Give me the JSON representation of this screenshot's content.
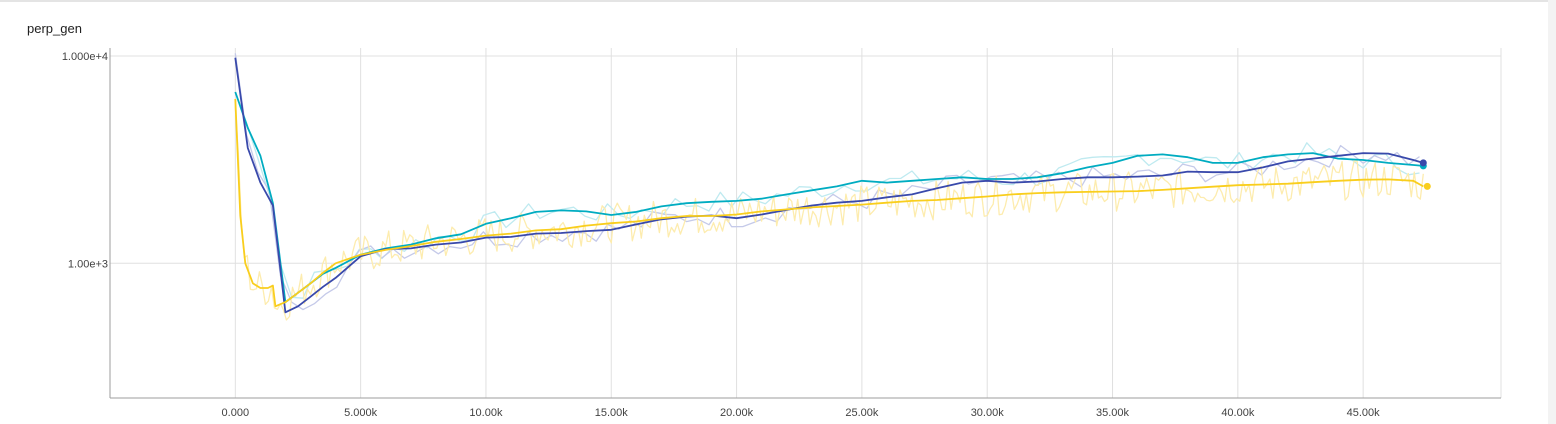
{
  "chart_data": {
    "type": "line",
    "title": "perp_gen",
    "xlabel": "",
    "ylabel": "",
    "y_scale": "log",
    "xlim": [
      -5000,
      50500
    ],
    "ylim_log10": [
      2.35,
      4.0
    ],
    "grid": true,
    "legend": "none",
    "x_ticks": [
      0,
      5000,
      10000,
      15000,
      20000,
      25000,
      30000,
      35000,
      40000,
      45000
    ],
    "x_tick_labels": [
      "0.000",
      "5.000k",
      "10.00k",
      "15.00k",
      "20.00k",
      "25.00k",
      "30.00k",
      "35.00k",
      "40.00k",
      "45.00k"
    ],
    "y_ticks": [
      1000,
      10000
    ],
    "y_tick_labels": [
      "1.00e+3",
      "1.000e+4"
    ],
    "series": [
      {
        "color": "#00acc1",
        "raw_color": "#bfeaf0",
        "x": [
          0,
          500,
          1000,
          1500,
          2000,
          2500,
          3000,
          3500,
          4000,
          5000,
          6000,
          7000,
          8000,
          9000,
          10000,
          11000,
          12000,
          13000,
          14000,
          15000,
          16000,
          17000,
          18000,
          19000,
          20000,
          21000,
          22000,
          23000,
          24000,
          25000,
          26000,
          27000,
          28000,
          29000,
          30000,
          31000,
          32000,
          33000,
          34000,
          35000,
          36000,
          37000,
          38000,
          39000,
          40000,
          41000,
          42000,
          43000,
          44000,
          45000,
          46000,
          47000,
          47400
        ],
        "y": [
          6700,
          4500,
          3300,
          1950,
          650,
          720,
          800,
          890,
          950,
          1100,
          1180,
          1230,
          1320,
          1380,
          1550,
          1650,
          1770,
          1800,
          1780,
          1710,
          1770,
          1880,
          1950,
          1980,
          2000,
          2050,
          2150,
          2250,
          2350,
          2500,
          2450,
          2500,
          2550,
          2600,
          2550,
          2550,
          2600,
          2720,
          2900,
          3050,
          3300,
          3350,
          3250,
          3050,
          3050,
          3250,
          3350,
          3400,
          3200,
          3150,
          3050,
          2980,
          2950
        ]
      },
      {
        "color": "#3949ab",
        "raw_color": "#c5cae9",
        "x": [
          0,
          500,
          1000,
          1500,
          2000,
          2500,
          3000,
          3500,
          4000,
          5000,
          6000,
          7000,
          8000,
          9000,
          10000,
          11000,
          12000,
          13000,
          14000,
          15000,
          16000,
          17000,
          18000,
          19000,
          20000,
          21000,
          22000,
          23000,
          24000,
          25000,
          26000,
          27000,
          28000,
          29000,
          30000,
          31000,
          32000,
          33000,
          34000,
          35000,
          36000,
          37000,
          38000,
          39000,
          40000,
          41000,
          42000,
          43000,
          44000,
          45000,
          46000,
          47000,
          47400
        ],
        "y": [
          9800,
          3600,
          2450,
          1900,
          580,
          620,
          690,
          770,
          850,
          1080,
          1170,
          1180,
          1230,
          1260,
          1330,
          1340,
          1390,
          1400,
          1430,
          1450,
          1540,
          1630,
          1680,
          1700,
          1650,
          1720,
          1810,
          1900,
          1960,
          2000,
          2080,
          2150,
          2300,
          2450,
          2500,
          2450,
          2480,
          2550,
          2600,
          2600,
          2620,
          2650,
          2770,
          2750,
          2750,
          2900,
          3100,
          3200,
          3300,
          3400,
          3380,
          3150,
          3050
        ]
      },
      {
        "color": "#f9ce1d",
        "raw_color": "#fdecae",
        "x": [
          0,
          200,
          400,
          700,
          1000,
          1300,
          1500,
          1600,
          2000,
          2500,
          3000,
          3500,
          4000,
          5000,
          6000,
          7000,
          8000,
          9000,
          10000,
          11000,
          12000,
          13000,
          14000,
          15000,
          16000,
          17000,
          18000,
          19000,
          20000,
          21000,
          22000,
          23000,
          24000,
          25000,
          26000,
          27000,
          28000,
          29000,
          30000,
          31000,
          32000,
          33000,
          34000,
          35000,
          36000,
          37000,
          38000,
          39000,
          40000,
          41000,
          42000,
          43000,
          44000,
          45000,
          46000,
          47000,
          47400
        ],
        "y": [
          6200,
          1700,
          1000,
          800,
          760,
          760,
          780,
          620,
          650,
          720,
          800,
          900,
          1000,
          1100,
          1160,
          1210,
          1270,
          1310,
          1360,
          1390,
          1440,
          1460,
          1520,
          1560,
          1590,
          1650,
          1690,
          1690,
          1720,
          1780,
          1820,
          1860,
          1890,
          1920,
          1960,
          2000,
          2020,
          2060,
          2100,
          2150,
          2180,
          2200,
          2210,
          2220,
          2230,
          2260,
          2300,
          2340,
          2380,
          2400,
          2420,
          2460,
          2500,
          2530,
          2540,
          2500,
          2350
        ]
      }
    ]
  }
}
